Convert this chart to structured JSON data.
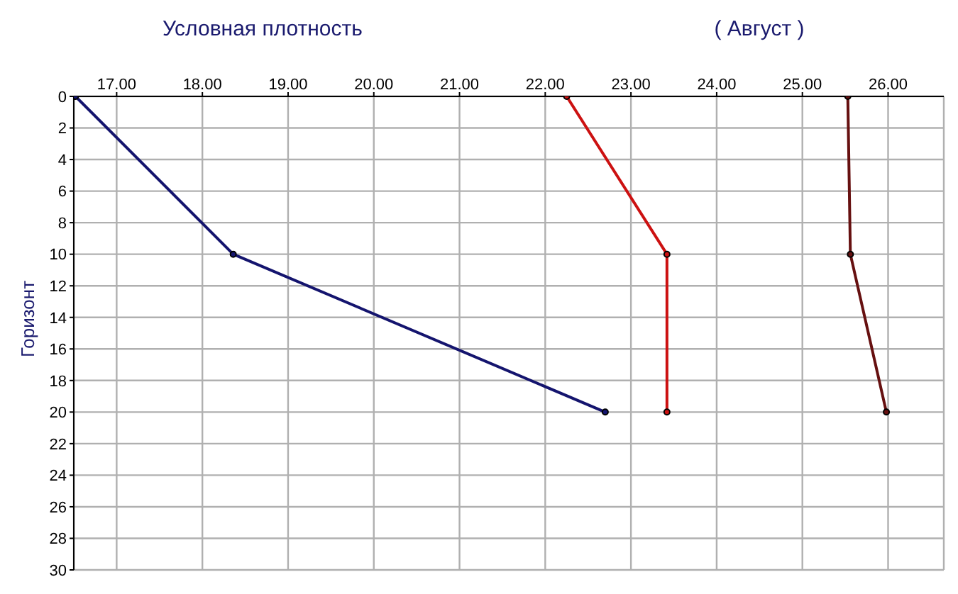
{
  "chart_data": {
    "type": "line",
    "title": "Условная плотность",
    "subtitle": "( Август )",
    "ylabel": "Горизонт",
    "xlim": [
      16.5,
      26.65
    ],
    "xticks": [
      {
        "value": 17,
        "label": "17.00"
      },
      {
        "value": 18,
        "label": "18.00"
      },
      {
        "value": 19,
        "label": "19.00"
      },
      {
        "value": 20,
        "label": "20.00"
      },
      {
        "value": 21,
        "label": "21.00"
      },
      {
        "value": 22,
        "label": "22.00"
      },
      {
        "value": 23,
        "label": "23.00"
      },
      {
        "value": 24,
        "label": "24.00"
      },
      {
        "value": 25,
        "label": "25.00"
      },
      {
        "value": 26,
        "label": "26.00"
      }
    ],
    "ylim": [
      30,
      0
    ],
    "yticks": [
      0,
      2,
      4,
      6,
      8,
      10,
      12,
      14,
      16,
      18,
      20,
      22,
      24,
      26,
      28,
      30
    ],
    "grid": true,
    "marker": "circle",
    "line_style": "solid",
    "series": [
      {
        "color": "#14146e",
        "x": [
          16.52,
          18.36,
          22.7
        ],
        "values": [
          0,
          10,
          20
        ]
      },
      {
        "color": "#cc1111",
        "x": [
          22.25,
          23.42,
          23.42
        ],
        "values": [
          0,
          10,
          20
        ]
      },
      {
        "color": "#661010",
        "x": [
          25.53,
          25.56,
          25.98
        ],
        "values": [
          0,
          10,
          20
        ]
      }
    ]
  }
}
